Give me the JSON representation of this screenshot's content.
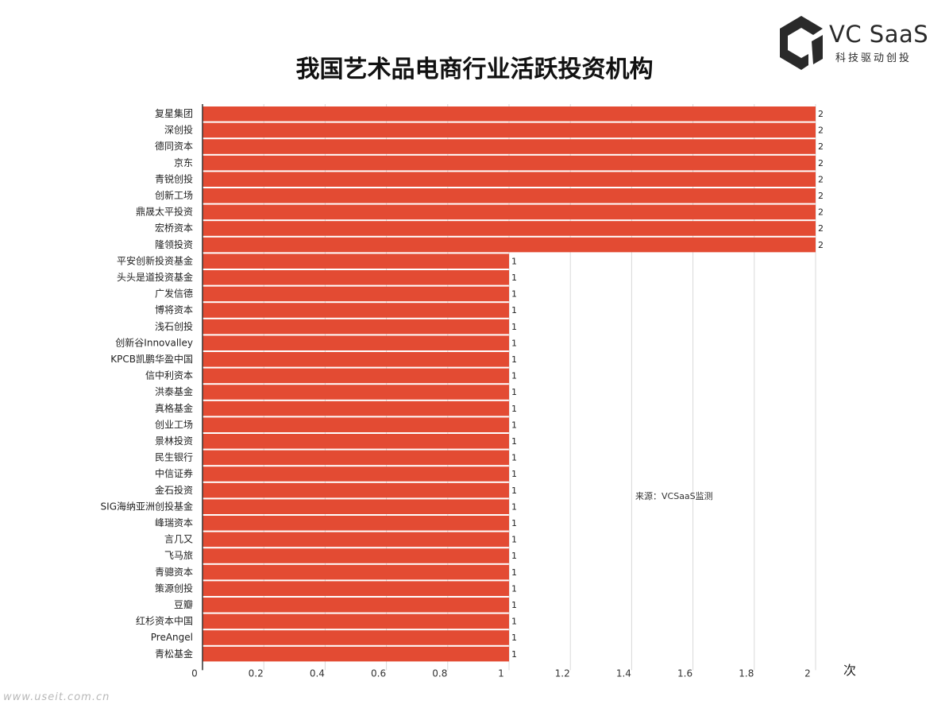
{
  "logo": {
    "brand": "VC SaaS",
    "tagline": "科技驱动创投",
    "icon": "vcsaas-logo-icon",
    "color": "#2a2a2a"
  },
  "source_note": "来源：VCSaaS监测",
  "unit_label": "次",
  "watermark": "www.useit.com.cn",
  "colors": {
    "bar": "#e34b33",
    "grid": "#d9d9d9",
    "axis": "#333333"
  },
  "chart_data": {
    "type": "bar",
    "orientation": "horizontal",
    "title": "我国艺术品电商行业活跃投资机构",
    "xlabel": "次",
    "ylabel": "",
    "xlim": [
      0,
      2
    ],
    "xticks": [
      "0",
      "0.2",
      "0.4",
      "0.6",
      "0.8",
      "1",
      "1.2",
      "1.4",
      "1.6",
      "1.8",
      "2"
    ],
    "grid": true,
    "legend": "none",
    "categories": [
      "复星集团",
      "深创投",
      "德同资本",
      "京东",
      "青锐创投",
      "创新工场",
      "鼎晟太平投资",
      "宏桥资本",
      "隆领投资",
      "平安创新投资基金",
      "头头是道投资基金",
      "广发信德",
      "博将资本",
      "浅石创投",
      "创新谷Innovalley",
      "KPCB凯鹏华盈中国",
      "信中利资本",
      "洪泰基金",
      "真格基金",
      "创业工场",
      "景林投资",
      "民生银行",
      "中信证券",
      "金石投资",
      "SIG海纳亚洲创投基金",
      "峰瑞资本",
      "言几又",
      "飞马旅",
      "青骢资本",
      "策源创投",
      "豆瓣",
      "红杉资本中国",
      "PreAngel",
      "青松基金"
    ],
    "values": [
      2,
      2,
      2,
      2,
      2,
      2,
      2,
      2,
      2,
      1,
      1,
      1,
      1,
      1,
      1,
      1,
      1,
      1,
      1,
      1,
      1,
      1,
      1,
      1,
      1,
      1,
      1,
      1,
      1,
      1,
      1,
      1,
      1,
      1
    ],
    "data_labels": [
      "2",
      "2",
      "2",
      "2",
      "2",
      "2",
      "2",
      "2",
      "2",
      "1",
      "1",
      "1",
      "1",
      "1",
      "1",
      "1",
      "1",
      "1",
      "1",
      "1",
      "1",
      "1",
      "1",
      "1",
      "1",
      "1",
      "1",
      "1",
      "1",
      "1",
      "1",
      "1",
      "1",
      "1"
    ]
  }
}
